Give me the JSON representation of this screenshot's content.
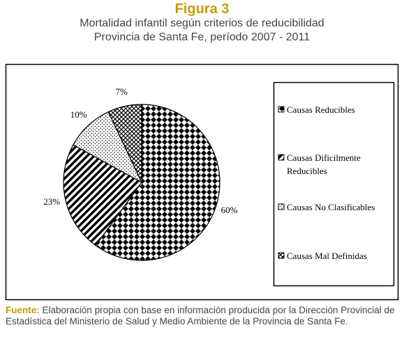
{
  "chart_data": {
    "type": "pie",
    "title": "Figura 3",
    "subtitle": [
      "Mortalidad infantil según criterios de reducibilidad",
      "Provincia de Santa Fe, período 2007 - 2011"
    ],
    "categories": [
      "Causas Reducibles",
      "Causas Dificilmente Reducibles",
      "Causas No Clasificables",
      "Causas Mal Definidas"
    ],
    "values": [
      60,
      23,
      10,
      7
    ],
    "value_labels": [
      "60%",
      "23%",
      "10%",
      "7%"
    ],
    "color": "#000000",
    "source_label": "Fuente:",
    "source": "Elaboración propia con base en información producida por la Dirección Provincial de Estadística del Ministerio de Salud y Medio Ambiente de la Provincia de Santa Fe."
  }
}
